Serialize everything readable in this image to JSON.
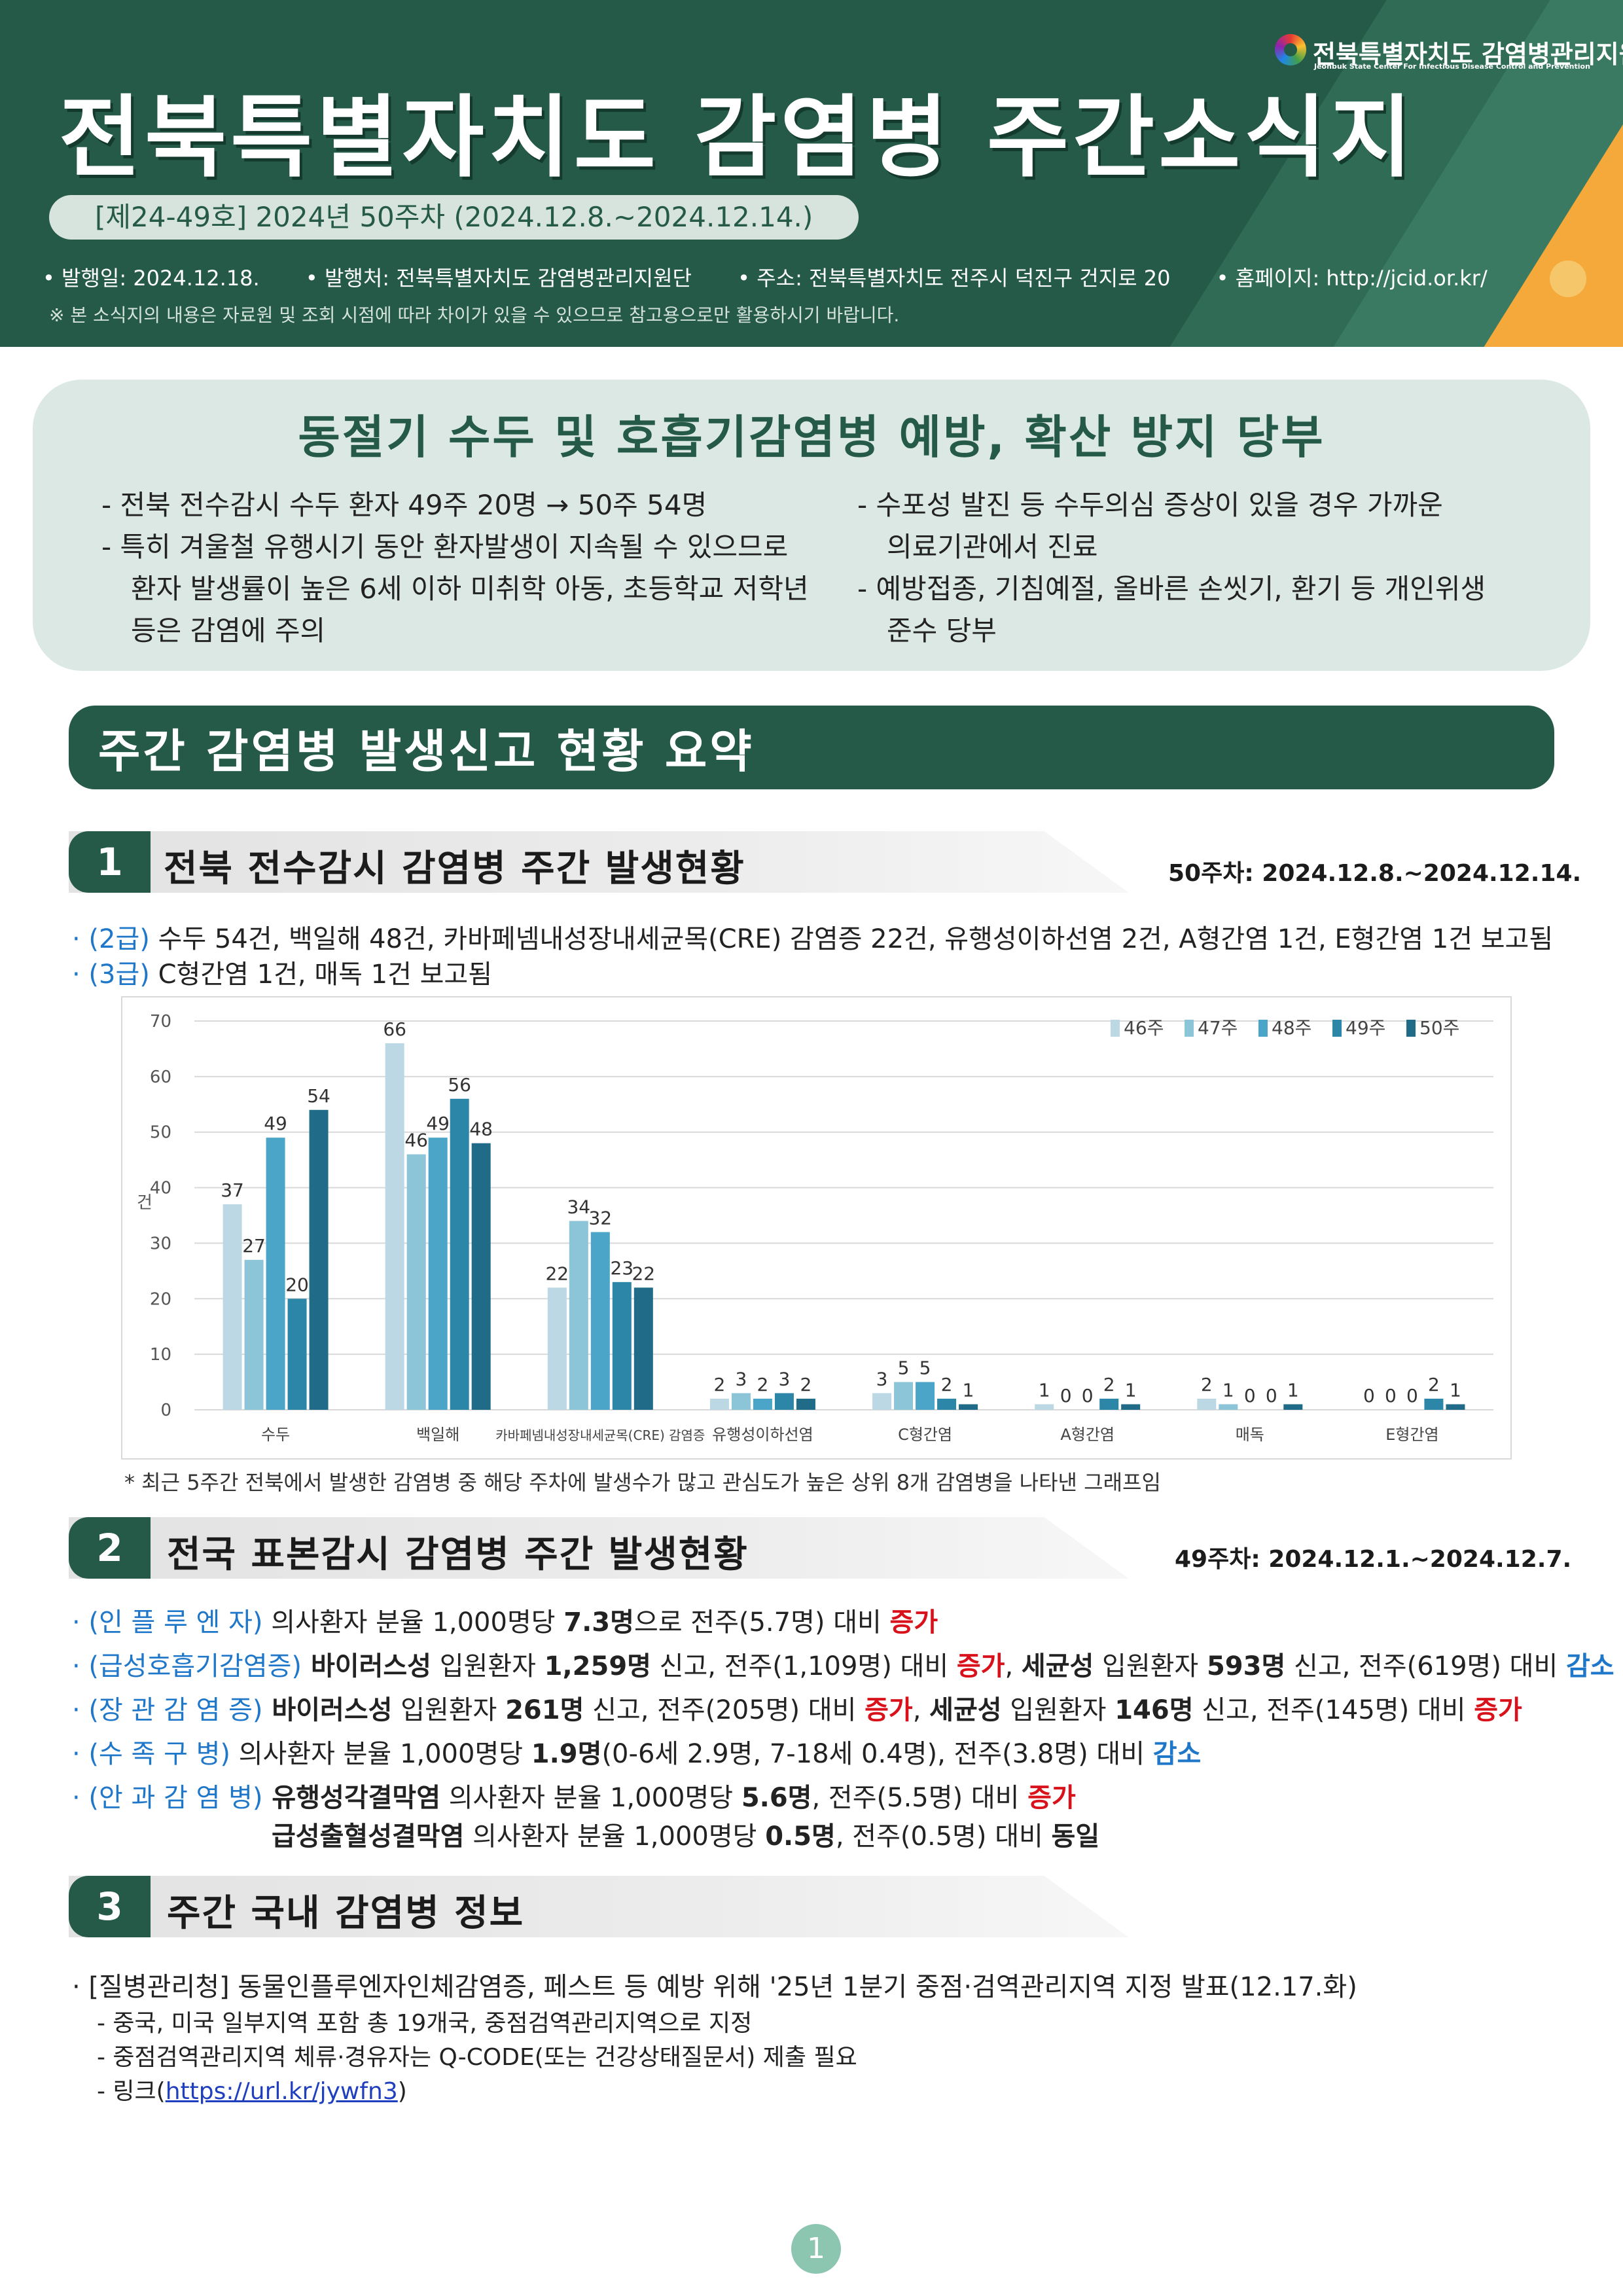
{
  "header": {
    "title": "전북특별자치도 감염병 주간소식지",
    "issue": "[제24-49호] 2024년 50주차 (2024.12.8.~2024.12.14.)",
    "meta": [
      "• 발행일: 2024.12.18.",
      "• 발행처: 전북특별자치도 감염병관리지원단",
      "• 주소: 전북특별자치도 전주시 덕진구 건지로 20",
      "• 홈페이지: http://jcid.or.kr/"
    ],
    "notice": "※ 본 소식지의 내용은 자료원 및 조회 시점에 따라 차이가 있을 수 있으므로 참고용으로만 활용하시기 바랍니다.",
    "org_name": "전북특별자치도 감염병관리지원단",
    "org_eng": "Jeonbuk State Center For Infectious Disease Control and Prevention",
    "colors": {
      "primary": "#245a47",
      "accent": "#f4a93a"
    }
  },
  "highlight": {
    "title": "동절기 수두 및 호흡기감염병 예방, 확산 방지 당부",
    "left": [
      "- 전북 전수감시 수두 환자 49주 20명 → 50주 54명",
      "- 특히 겨울철 유행시기 동안 환자발생이 지속될 수 있으므로",
      "환자 발생률이 높은 6세 이하 미취학 아동, 초등학교 저학년",
      "등은 감염에 주의"
    ],
    "right": [
      "- 수포성 발진 등 수두의심 증상이 있을 경우 가까운",
      "의료기관에서 진료",
      "- 예방접종, 기침예절, 올바른 손씻기, 환기 등 개인위생",
      "준수 당부"
    ]
  },
  "summary_title": "주간 감염병 발생신고 현황 요약",
  "section1": {
    "num": "1",
    "title": "전북 전수감시 감염병 주간 발생현황",
    "date": "50주차: 2024.12.8.~2024.12.14.",
    "line1_label": "· (2급)",
    "line1_text": " 수두 54건, 백일해 48건, 카바페넴내성장내세균목(CRE) 감염증 22건, 유행성이하선염 2건, A형간염 1건, E형간염 1건 보고됨",
    "line2_label": "· (3급)",
    "line2_text": " C형간염 1건, 매독 1건 보고됨",
    "note": "* 최근 5주간 전북에서 발생한 감염병 중 해당 주차에 발생수가 많고 관심도가 높은 상위 8개 감염병을 나타낸 그래프임"
  },
  "chart_data": {
    "type": "bar",
    "categories": [
      "수두",
      "백일해",
      "카바페넴내성장내세균목(CRE) 감염증",
      "유행성이하선염",
      "C형간염",
      "A형간염",
      "매독",
      "E형간염"
    ],
    "series": [
      {
        "name": "46주",
        "color": "#bcd8e4",
        "values": [
          37,
          66,
          22,
          2,
          3,
          1,
          2,
          0
        ]
      },
      {
        "name": "47주",
        "color": "#8cc4d8",
        "values": [
          27,
          46,
          34,
          3,
          5,
          0,
          1,
          0
        ]
      },
      {
        "name": "48주",
        "color": "#4aa5c8",
        "values": [
          49,
          49,
          32,
          2,
          5,
          0,
          0,
          0
        ]
      },
      {
        "name": "49주",
        "color": "#2b86a8",
        "values": [
          20,
          56,
          23,
          3,
          2,
          2,
          0,
          2
        ]
      },
      {
        "name": "50주",
        "color": "#1f6b88",
        "values": [
          54,
          48,
          22,
          2,
          1,
          1,
          1,
          1
        ]
      }
    ],
    "ylabel": "건",
    "ylim": [
      0,
      70
    ],
    "yticks": [
      0,
      10,
      20,
      30,
      40,
      50,
      60,
      70
    ],
    "grid": true,
    "legend": "top-right"
  },
  "section2": {
    "num": "2",
    "title": "전국 표본감시 감염병 주간 발생현황",
    "date": "49주차: 2024.12.1.~2024.12.7.",
    "rows": [
      {
        "label": "· (인 플 루 엔 자)",
        "parts": [
          {
            "t": " 의사환자 분율 1,000명당 ",
            "s": ""
          },
          {
            "t": "7.3명",
            "s": "bold"
          },
          {
            "t": "으로 전주(5.7명) 대비 ",
            "s": ""
          },
          {
            "t": "증가",
            "s": "bold red"
          }
        ]
      },
      {
        "label": "· (급성호흡기감염증)",
        "parts": [
          {
            "t": " 바이러스성",
            "s": "bold"
          },
          {
            "t": " 입원환자 ",
            "s": ""
          },
          {
            "t": "1,259명",
            "s": "bold"
          },
          {
            "t": " 신고, 전주(1,109명) 대비 ",
            "s": ""
          },
          {
            "t": "증가",
            "s": "bold red"
          },
          {
            "t": ", ",
            "s": ""
          },
          {
            "t": "세균성",
            "s": "bold"
          },
          {
            "t": " 입원환자 ",
            "s": ""
          },
          {
            "t": "593명",
            "s": "bold"
          },
          {
            "t": " 신고, 전주(619명) 대비 ",
            "s": ""
          },
          {
            "t": "감소",
            "s": "bold blue"
          }
        ]
      },
      {
        "label": "· (장 관 감 염 증)",
        "parts": [
          {
            "t": " 바이러스성",
            "s": "bold"
          },
          {
            "t": " 입원환자 ",
            "s": ""
          },
          {
            "t": "261명",
            "s": "bold"
          },
          {
            "t": " 신고, 전주(205명) 대비 ",
            "s": ""
          },
          {
            "t": "증가",
            "s": "bold red"
          },
          {
            "t": ", ",
            "s": ""
          },
          {
            "t": "세균성",
            "s": "bold"
          },
          {
            "t": " 입원환자 ",
            "s": ""
          },
          {
            "t": "146명",
            "s": "bold"
          },
          {
            "t": " 신고, 전주(145명) 대비 ",
            "s": ""
          },
          {
            "t": "증가",
            "s": "bold red"
          }
        ]
      },
      {
        "label": "· (수 족 구 병)",
        "parts": [
          {
            "t": " 의사환자 분율 1,000명당 ",
            "s": ""
          },
          {
            "t": "1.9명",
            "s": "bold"
          },
          {
            "t": "(0-6세 2.9명, 7-18세 0.4명), 전주(3.8명) 대비 ",
            "s": ""
          },
          {
            "t": "감소",
            "s": "bold blue"
          }
        ]
      },
      {
        "label": "· (안 과 감 염 병)",
        "parts": [
          {
            "t": " 유행성각결막염",
            "s": "bold"
          },
          {
            "t": " 의사환자 분율 1,000명당 ",
            "s": ""
          },
          {
            "t": "5.6명",
            "s": "bold"
          },
          {
            "t": ", 전주(5.5명) 대비 ",
            "s": ""
          },
          {
            "t": "증가",
            "s": "bold red"
          }
        ]
      },
      {
        "label": "",
        "parts": [
          {
            "t": "급성출혈성결막염",
            "s": "bold"
          },
          {
            "t": " 의사환자 분율 1,000명당 ",
            "s": ""
          },
          {
            "t": "0.5명",
            "s": "bold"
          },
          {
            "t": ", 전주(0.5명) 대비 ",
            "s": ""
          },
          {
            "t": "동일",
            "s": "bold"
          }
        ]
      }
    ]
  },
  "section3": {
    "num": "3",
    "title": "주간 국내 감염병 정보",
    "item": "· [질병관리청] 동물인플루엔자인체감염증, 페스트 등 예방 위해 '25년 1분기 중점·검역관리지역 지정 발표(12.17.화)",
    "subs": [
      "- 중국, 미국 일부지역 포함 총 19개국, 중점검역관리지역으로 지정",
      "- 중점검역관리지역 체류·경유자는 Q-CODE(또는 건강상태질문서) 제출 필요"
    ],
    "link_prefix": "- 링크(",
    "link_text": "https://url.kr/jywfn3",
    "link_suffix": ")"
  },
  "page_number": "1"
}
